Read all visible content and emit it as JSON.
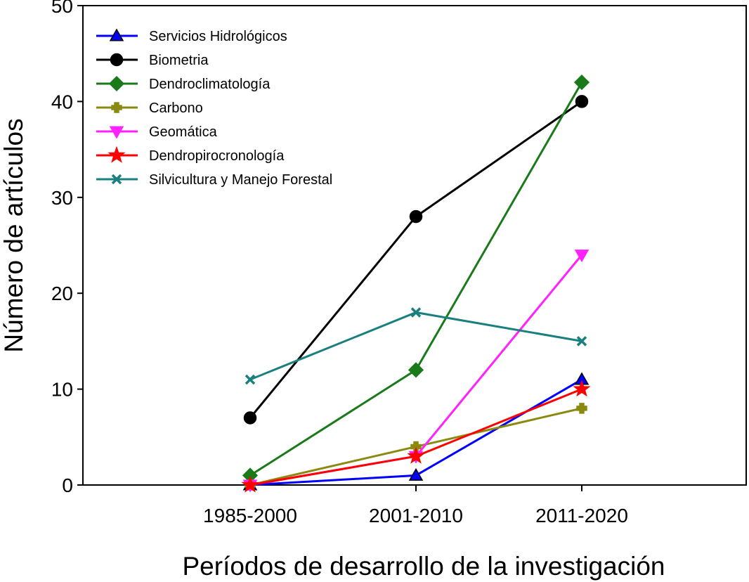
{
  "chart_data": {
    "type": "line",
    "title": "",
    "xlabel": "Períodos de desarrollo de la investigación",
    "ylabel": "Número de artículos",
    "categories": [
      "1985-2000",
      "2001-2010",
      "2011-2020"
    ],
    "ylim": [
      0,
      50
    ],
    "yticks": [
      0,
      10,
      20,
      30,
      40,
      50
    ],
    "grid": false,
    "legend_position": "top-left",
    "series": [
      {
        "name": "Servicios Hidrológicos",
        "color": "#0000ff",
        "marker": "triangle-up",
        "values": [
          0,
          1,
          11
        ]
      },
      {
        "name": "Biometria",
        "color": "#000000",
        "marker": "circle",
        "values": [
          7,
          28,
          40
        ]
      },
      {
        "name": "Dendroclimatología",
        "color": "#1a7a1a",
        "marker": "diamond",
        "values": [
          1,
          12,
          42
        ]
      },
      {
        "name": "Carbono",
        "color": "#8a8a10",
        "marker": "plus",
        "values": [
          0,
          4,
          8
        ]
      },
      {
        "name": "Geomática",
        "color": "#ff22ff",
        "marker": "triangle-down",
        "values": [
          0,
          3,
          24
        ]
      },
      {
        "name": "Dendropirocronología",
        "color": "#ff0000",
        "marker": "star",
        "values": [
          0,
          3,
          10
        ]
      },
      {
        "name": "Silvicultura y Manejo Forestal",
        "color": "#1a7f7f",
        "marker": "x",
        "values": [
          11,
          18,
          15
        ]
      }
    ]
  }
}
